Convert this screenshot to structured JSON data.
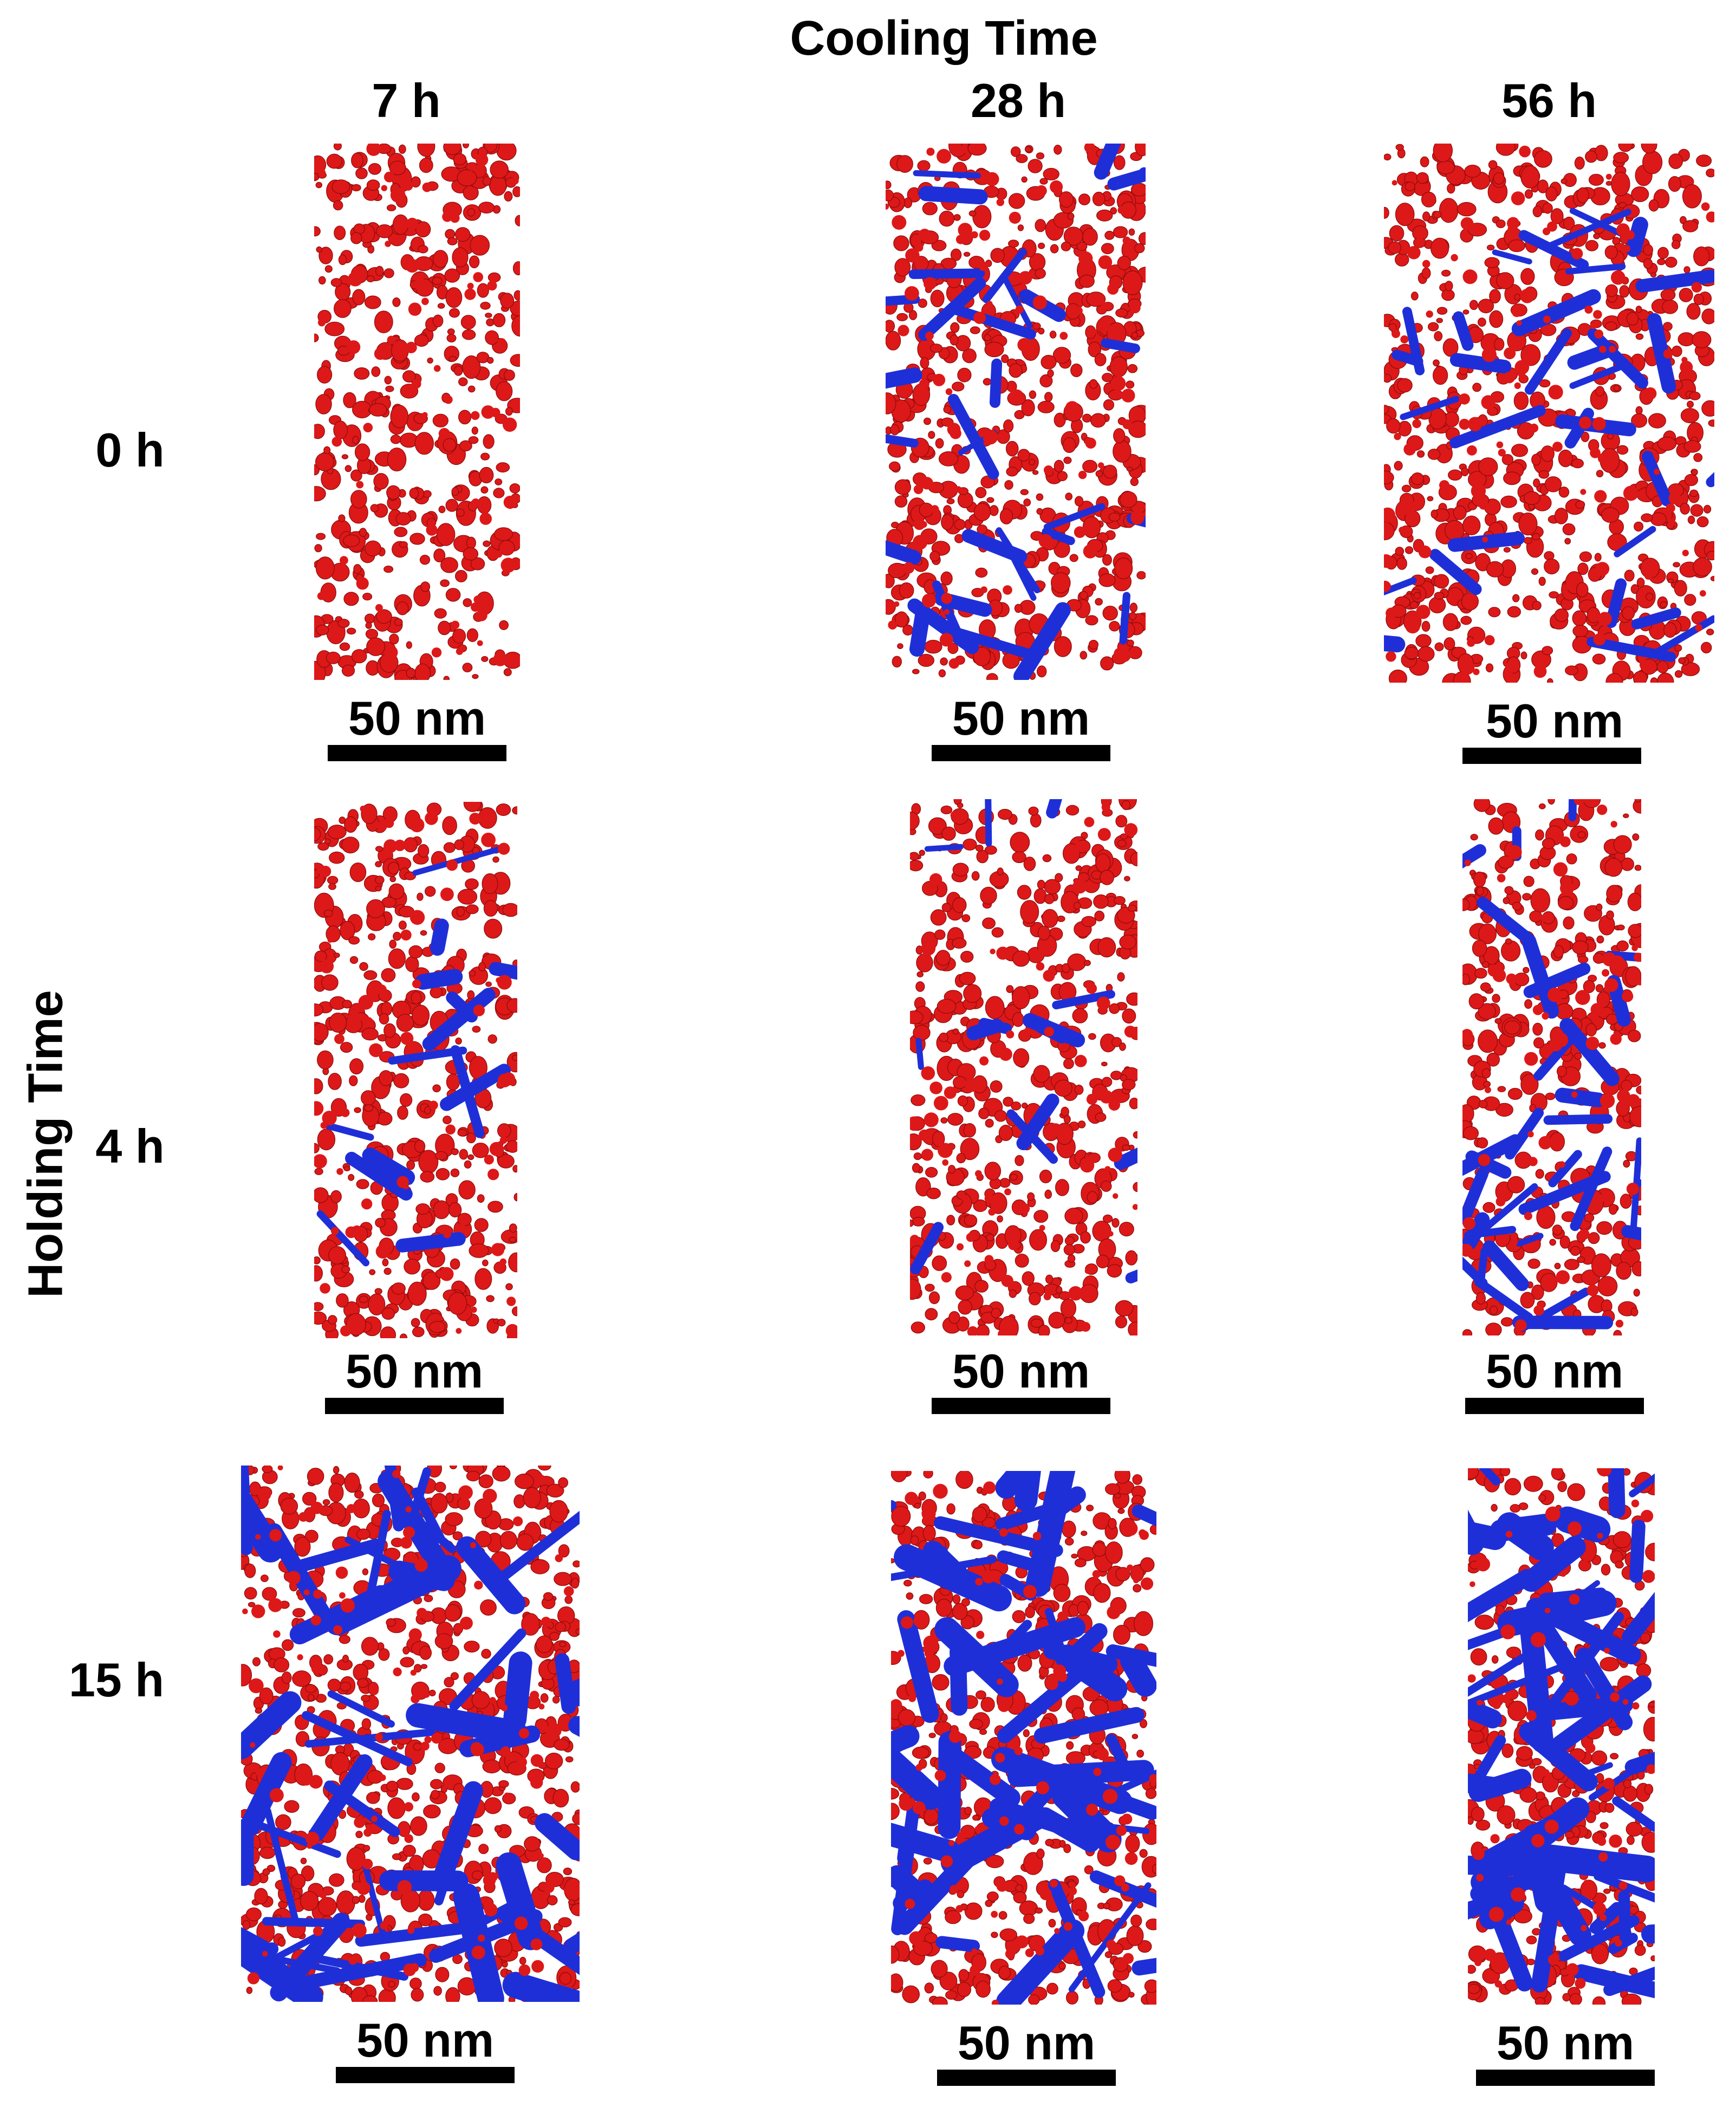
{
  "figure": {
    "column_header": "Cooling Time",
    "row_header": "Holding Time",
    "columns": [
      "7 h",
      "28 h",
      "56 h"
    ],
    "rows": [
      "0 h",
      "4 h",
      "15 h"
    ],
    "scale_bar": "50 nm",
    "colors": {
      "red_particles": "#dd1818",
      "blue_particles": "#1f2fd8",
      "background": "#ffffff"
    },
    "panels": [
      {
        "row": "0 h",
        "col": "7 h",
        "scale_bar": "50 nm",
        "blue_amount": 0
      },
      {
        "row": "0 h",
        "col": "28 h",
        "scale_bar": "50 nm",
        "blue_amount": 2
      },
      {
        "row": "0 h",
        "col": "56 h",
        "scale_bar": "50 nm",
        "blue_amount": 2
      },
      {
        "row": "4 h",
        "col": "7 h",
        "scale_bar": "50 nm",
        "blue_amount": 1
      },
      {
        "row": "4 h",
        "col": "28 h",
        "scale_bar": "50 nm",
        "blue_amount": 1
      },
      {
        "row": "4 h",
        "col": "56 h",
        "scale_bar": "50 nm",
        "blue_amount": 2
      },
      {
        "row": "15 h",
        "col": "7 h",
        "scale_bar": "50 nm",
        "blue_amount": 3
      },
      {
        "row": "15 h",
        "col": "28 h",
        "scale_bar": "50 nm",
        "blue_amount": 3
      },
      {
        "row": "15 h",
        "col": "56 h",
        "scale_bar": "50 nm",
        "blue_amount": 3
      }
    ]
  }
}
